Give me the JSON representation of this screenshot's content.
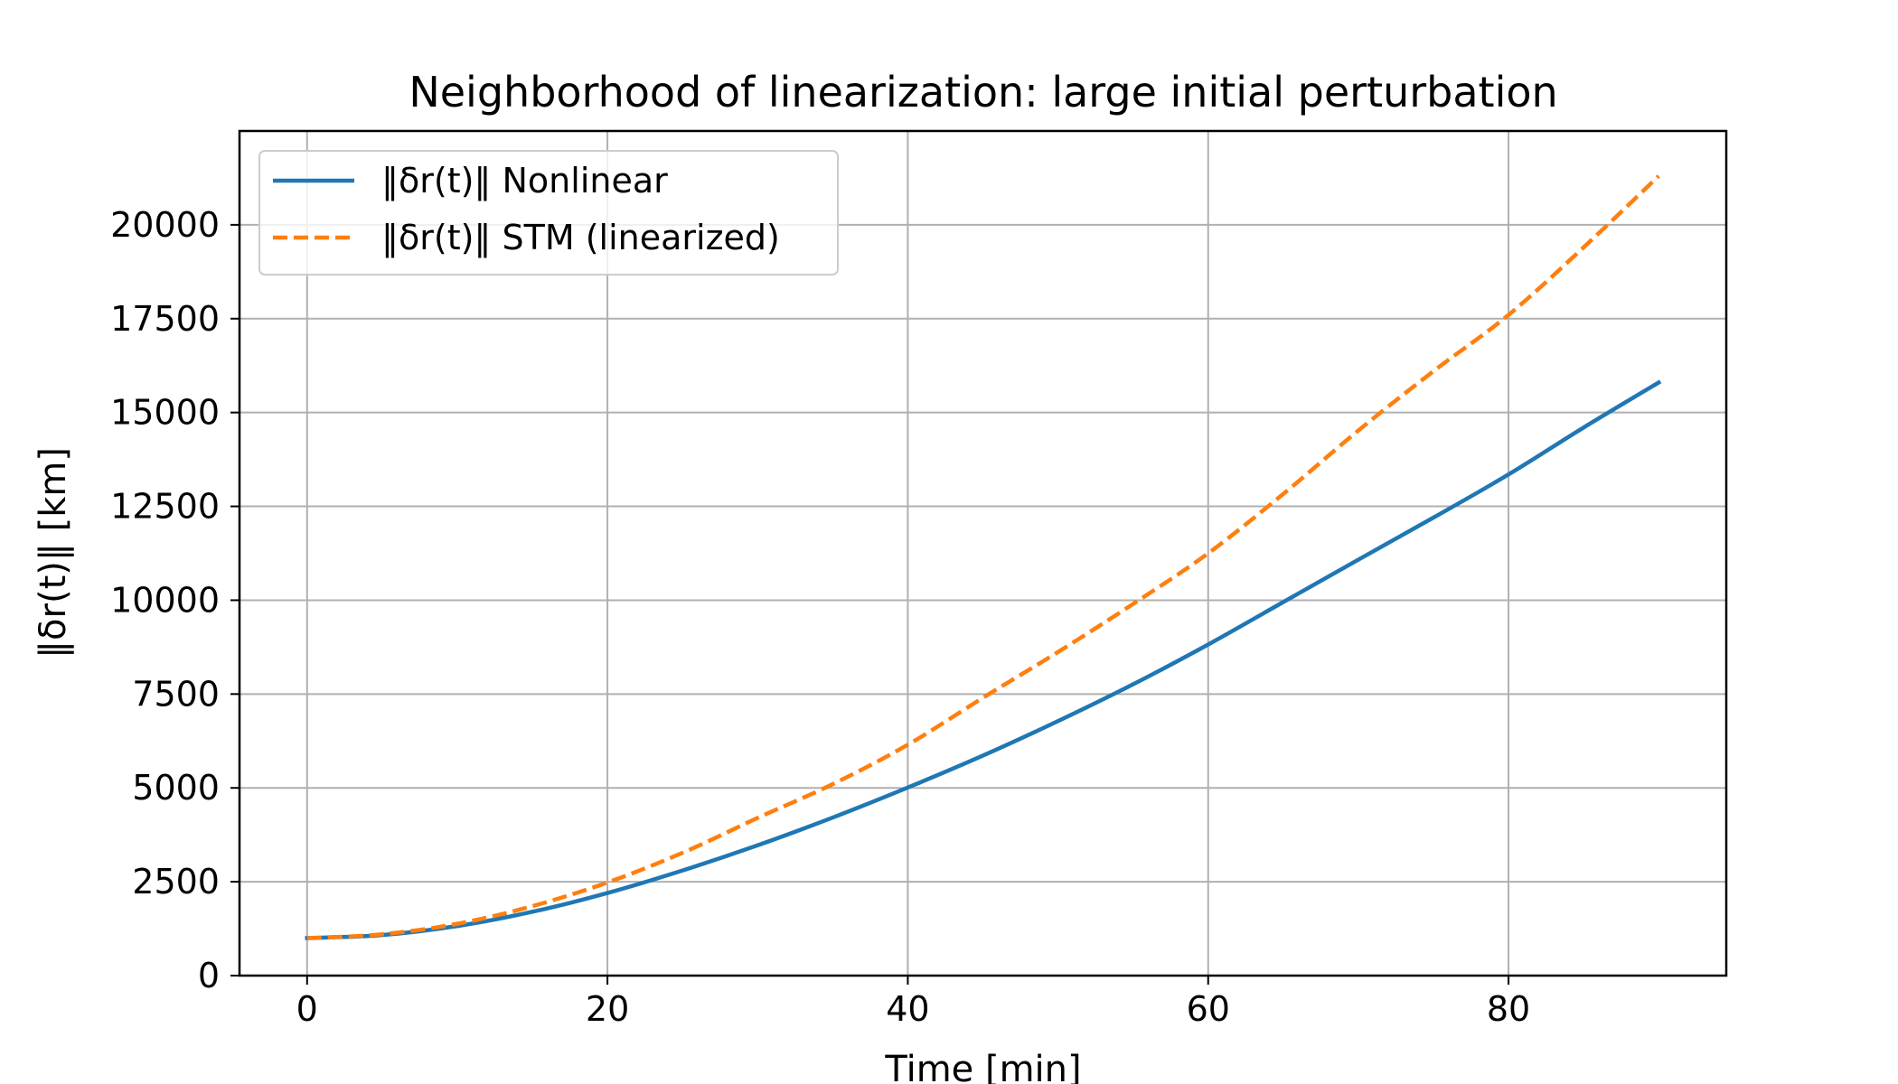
{
  "chart_data": {
    "type": "line",
    "title": "Neighborhood of linearization: large initial perturbation",
    "xlabel": "Time [min]",
    "ylabel": "‖δr(t)‖ [km]",
    "xlim": [
      -4.5,
      94.5
    ],
    "ylim": [
      0,
      22500
    ],
    "xticks": [
      0,
      20,
      40,
      60,
      80
    ],
    "yticks": [
      0,
      2500,
      5000,
      7500,
      10000,
      12500,
      15000,
      17500,
      20000
    ],
    "x_tick_labels": [
      "0",
      "20",
      "40",
      "60",
      "80"
    ],
    "y_tick_labels": [
      "0",
      "2500",
      "5000",
      "7500",
      "10000",
      "12500",
      "15000",
      "17500",
      "20000"
    ],
    "grid": true,
    "legend_position": "upper-left",
    "series": [
      {
        "name": "‖δr(t)‖ Nonlinear",
        "color": "#1f77b4",
        "dash": "solid",
        "x": [
          0,
          5,
          10,
          15,
          20,
          25,
          30,
          35,
          40,
          45,
          50,
          55,
          60,
          65,
          70,
          75,
          80,
          85,
          90
        ],
        "y": [
          1000,
          1080,
          1320,
          1700,
          2200,
          2800,
          3470,
          4210,
          5010,
          5860,
          6780,
          7760,
          8820,
          9950,
          11080,
          12200,
          13350,
          14600,
          15800
        ]
      },
      {
        "name": "‖δr(t)‖ STM (linearized)",
        "color": "#ff7f0e",
        "dash": "dashed",
        "x": [
          0,
          5,
          10,
          15,
          20,
          25,
          30,
          35,
          40,
          45,
          50,
          55,
          60,
          65,
          70,
          75,
          80,
          85,
          90
        ],
        "y": [
          1000,
          1100,
          1380,
          1850,
          2480,
          3270,
          4200,
          5100,
          6150,
          7400,
          8620,
          9900,
          11250,
          12830,
          14520,
          16100,
          17600,
          19400,
          21300
        ]
      }
    ]
  }
}
